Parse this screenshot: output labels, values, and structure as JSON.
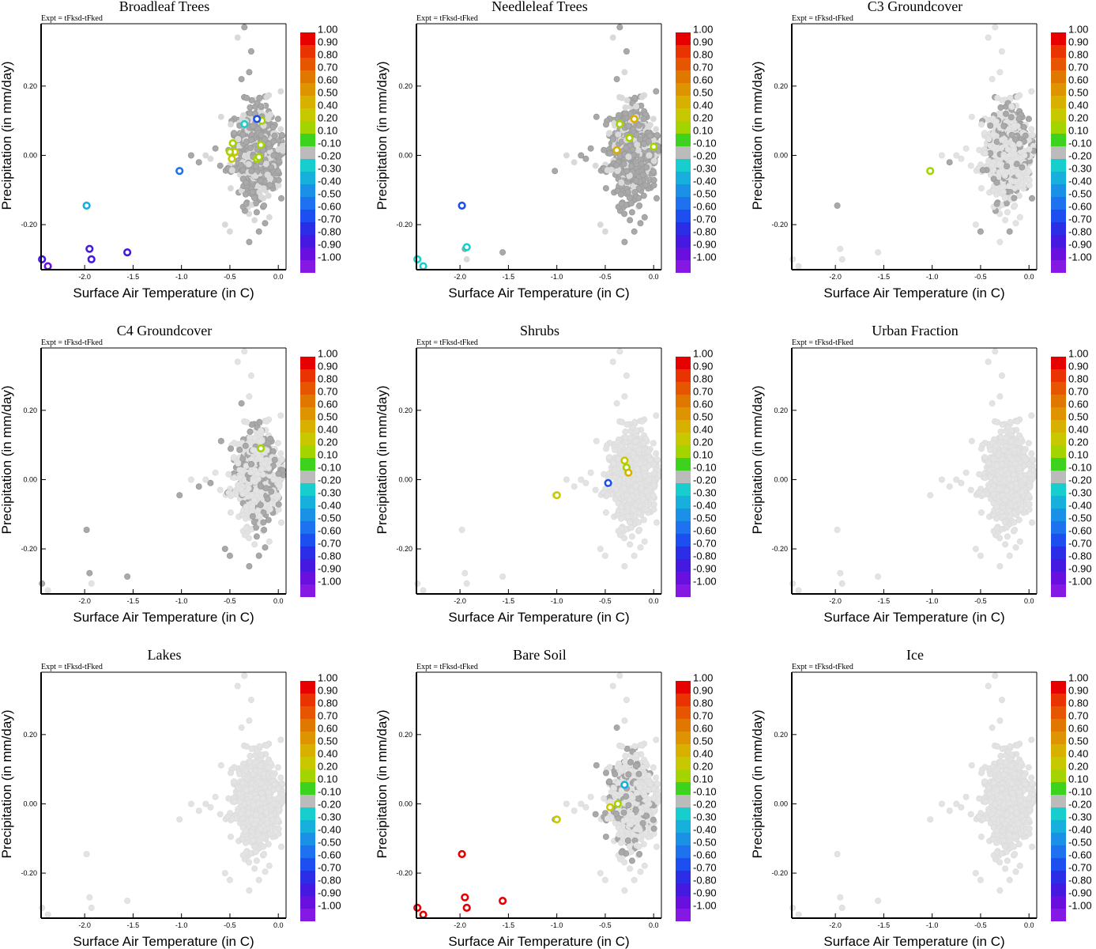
{
  "figure": {
    "expt_label": "Expt = tFksd-tFked",
    "xlabel": "Surface Air Temperature (in C)",
    "ylabel": "Precipitation (in mm/day)",
    "xticks": [
      -2.0,
      -1.5,
      -1.0,
      -0.5,
      0.0
    ],
    "xtick_labels": [
      "-2.0",
      "-1.5",
      "-1.0",
      "-0.5",
      "0.0"
    ],
    "yticks": [
      -0.2,
      0.0,
      0.2
    ],
    "ytick_labels": [
      "-0.20",
      "0.00",
      "0.20"
    ],
    "xlim": [
      -2.45,
      0.08
    ],
    "ylim": [
      -0.33,
      0.38
    ]
  },
  "colorbar": {
    "labels": [
      "1.00",
      "0.90",
      "0.80",
      "0.70",
      "0.60",
      "0.50",
      "0.40",
      "0.20",
      "0.10",
      "-0.10",
      "-0.20",
      "-0.30",
      "-0.40",
      "-0.50",
      "-0.60",
      "-0.70",
      "-0.80",
      "-0.90",
      "-1.00"
    ],
    "colors": [
      "#e60000",
      "#e93300",
      "#e65600",
      "#e07800",
      "#dd9400",
      "#d8b000",
      "#c8c800",
      "#a4d400",
      "#3cd21e",
      "#bbbbbb",
      "#17cdcd",
      "#17b0dc",
      "#1a90e6",
      "#1f72ef",
      "#1d4ff0",
      "#2b2ee6",
      "#4619e0",
      "#6a10de",
      "#8518e3"
    ]
  },
  "chart_data": [
    {
      "type": "scatter",
      "title": "Broadleaf Trees",
      "xlabel": "Surface Air Temperature (in C)",
      "ylabel": "Precipitation (in mm/day)",
      "xlim": [
        -2.45,
        0.08
      ],
      "ylim": [
        -0.33,
        0.38
      ],
      "background_points_shade": "dark",
      "colored_points": [
        {
          "x": -0.17,
          "y": 0.1,
          "value": 0.15
        },
        {
          "x": -0.35,
          "y": 0.09,
          "value": -0.25
        },
        {
          "x": -0.22,
          "y": 0.105,
          "value": -0.65
        },
        {
          "x": -0.18,
          "y": 0.03,
          "value": 0.15
        },
        {
          "x": -0.47,
          "y": 0.035,
          "value": 0.15
        },
        {
          "x": -0.45,
          "y": 0.01,
          "value": 0.3
        },
        {
          "x": -0.5,
          "y": 0.01,
          "value": 0.15
        },
        {
          "x": -0.48,
          "y": -0.01,
          "value": 0.3
        },
        {
          "x": -0.22,
          "y": -0.01,
          "value": 0.15
        },
        {
          "x": -0.2,
          "y": -0.005,
          "value": 0.15
        },
        {
          "x": -1.02,
          "y": -0.045,
          "value": -0.55
        },
        {
          "x": -1.98,
          "y": -0.145,
          "value": -0.3
        },
        {
          "x": -1.95,
          "y": -0.27,
          "value": -0.85
        },
        {
          "x": -1.93,
          "y": -0.3,
          "value": -0.85
        },
        {
          "x": -1.56,
          "y": -0.28,
          "value": -0.85
        },
        {
          "x": -2.44,
          "y": -0.3,
          "value": -0.85
        },
        {
          "x": -2.38,
          "y": -0.32,
          "value": -0.9
        }
      ]
    },
    {
      "type": "scatter",
      "title": "Needleleaf Trees",
      "xlabel": "Surface Air Temperature (in C)",
      "ylabel": "Precipitation (in mm/day)",
      "xlim": [
        -2.45,
        0.08
      ],
      "ylim": [
        -0.33,
        0.38
      ],
      "background_points_shade": "dark",
      "colored_points": [
        {
          "x": -0.2,
          "y": 0.105,
          "value": 0.5
        },
        {
          "x": -0.35,
          "y": 0.09,
          "value": 0.15
        },
        {
          "x": -0.25,
          "y": 0.05,
          "value": 0.15
        },
        {
          "x": -0.38,
          "y": 0.015,
          "value": 0.5
        },
        {
          "x": 0.0,
          "y": 0.025,
          "value": 0.15
        },
        {
          "x": -1.98,
          "y": -0.145,
          "value": -0.65
        },
        {
          "x": -1.93,
          "y": -0.265,
          "value": -0.25
        },
        {
          "x": -2.44,
          "y": -0.3,
          "value": -0.25
        },
        {
          "x": -2.38,
          "y": -0.32,
          "value": -0.25
        }
      ]
    },
    {
      "type": "scatter",
      "title": "C3 Groundcover",
      "xlabel": "Surface Air Temperature (in C)",
      "ylabel": "Precipitation (in mm/day)",
      "xlim": [
        -2.45,
        0.08
      ],
      "ylim": [
        -0.33,
        0.38
      ],
      "background_points_shade": "mixed",
      "colored_points": [
        {
          "x": -1.02,
          "y": -0.045,
          "value": 0.15
        }
      ]
    },
    {
      "type": "scatter",
      "title": "C4 Groundcover",
      "xlabel": "Surface Air Temperature (in C)",
      "ylabel": "Precipitation (in mm/day)",
      "xlim": [
        -2.45,
        0.08
      ],
      "ylim": [
        -0.33,
        0.38
      ],
      "background_points_shade": "mixed",
      "colored_points": [
        {
          "x": -0.18,
          "y": 0.09,
          "value": 0.15
        }
      ]
    },
    {
      "type": "scatter",
      "title": "Shrubs",
      "xlabel": "Surface Air Temperature (in C)",
      "ylabel": "Precipitation (in mm/day)",
      "xlim": [
        -2.45,
        0.08
      ],
      "ylim": [
        -0.33,
        0.38
      ],
      "background_points_shade": "light",
      "colored_points": [
        {
          "x": -0.3,
          "y": 0.055,
          "value": 0.3
        },
        {
          "x": -0.28,
          "y": 0.035,
          "value": 0.15
        },
        {
          "x": -0.26,
          "y": 0.02,
          "value": 0.5
        },
        {
          "x": -0.47,
          "y": -0.01,
          "value": -0.65
        },
        {
          "x": -1.0,
          "y": -0.045,
          "value": 0.3
        }
      ]
    },
    {
      "type": "scatter",
      "title": "Urban Fraction",
      "xlabel": "Surface Air Temperature (in C)",
      "ylabel": "Precipitation (in mm/day)",
      "xlim": [
        -2.45,
        0.08
      ],
      "ylim": [
        -0.33,
        0.38
      ],
      "background_points_shade": "light",
      "colored_points": []
    },
    {
      "type": "scatter",
      "title": "Lakes",
      "xlabel": "Surface Air Temperature (in C)",
      "ylabel": "Precipitation (in mm/day)",
      "xlim": [
        -2.45,
        0.08
      ],
      "ylim": [
        -0.33,
        0.38
      ],
      "background_points_shade": "light",
      "colored_points": []
    },
    {
      "type": "scatter",
      "title": "Bare Soil",
      "xlabel": "Surface Air Temperature (in C)",
      "ylabel": "Precipitation (in mm/day)",
      "xlim": [
        -2.45,
        0.08
      ],
      "ylim": [
        -0.33,
        0.38
      ],
      "background_points_shade": "mixed",
      "colored_points": [
        {
          "x": -0.3,
          "y": 0.055,
          "value": -0.35
        },
        {
          "x": -0.37,
          "y": 0.0,
          "value": 0.15
        },
        {
          "x": -0.45,
          "y": -0.01,
          "value": 0.3
        },
        {
          "x": -1.0,
          "y": -0.045,
          "value": 0.3
        },
        {
          "x": -1.98,
          "y": -0.145,
          "value": 0.95
        },
        {
          "x": -1.95,
          "y": -0.27,
          "value": 0.95
        },
        {
          "x": -1.93,
          "y": -0.3,
          "value": 0.95
        },
        {
          "x": -1.56,
          "y": -0.28,
          "value": 0.95
        },
        {
          "x": -2.44,
          "y": -0.3,
          "value": 0.95
        },
        {
          "x": -2.38,
          "y": -0.32,
          "value": 0.95
        }
      ]
    },
    {
      "type": "scatter",
      "title": "Ice",
      "xlabel": "Surface Air Temperature (in C)",
      "ylabel": "Precipitation (in mm/day)",
      "xlim": [
        -2.45,
        0.08
      ],
      "ylim": [
        -0.33,
        0.38
      ],
      "background_points_shade": "light",
      "colored_points": []
    }
  ]
}
